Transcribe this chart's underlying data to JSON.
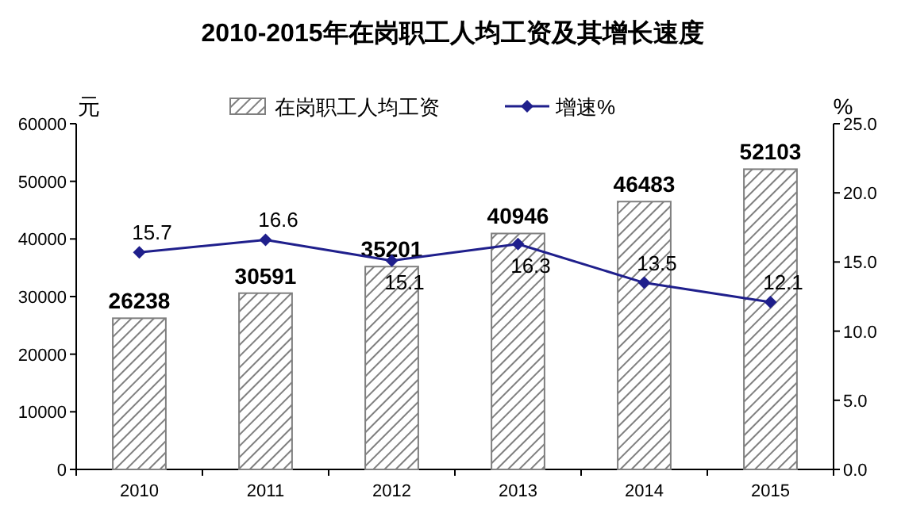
{
  "chart_data": {
    "type": "bar",
    "title": "2010-2015年在岗职工人均工资及其增长速度",
    "ylabel": "元",
    "y2label": "%",
    "categories": [
      "2010",
      "2011",
      "2012",
      "2013",
      "2014",
      "2015"
    ],
    "series": [
      {
        "name": "在岗职工人均工资",
        "color": "#7f7f7f",
        "values": [
          26238,
          30591,
          35201,
          40946,
          46483,
          52103
        ]
      },
      {
        "name": "增速%",
        "type": "line",
        "axis": "y2",
        "color": "#1f1f8c",
        "values": [
          15.7,
          16.6,
          15.1,
          16.3,
          13.5,
          12.1
        ]
      }
    ],
    "ylim": [
      0,
      60000
    ],
    "yticks": [
      0,
      10000,
      20000,
      30000,
      40000,
      50000,
      60000
    ],
    "y2lim": [
      0,
      25
    ],
    "y2ticks": [
      {
        "value": 0,
        "label": "0.0"
      },
      {
        "value": 5,
        "label": "5.0"
      },
      {
        "value": 10,
        "label": "10.0"
      },
      {
        "value": 15,
        "label": "15.0"
      },
      {
        "value": 20,
        "label": "20.0"
      },
      {
        "value": 25,
        "label": "25.0"
      }
    ],
    "data_labels": true,
    "legend": "top",
    "marker": "diamond",
    "line_style": "solid"
  }
}
